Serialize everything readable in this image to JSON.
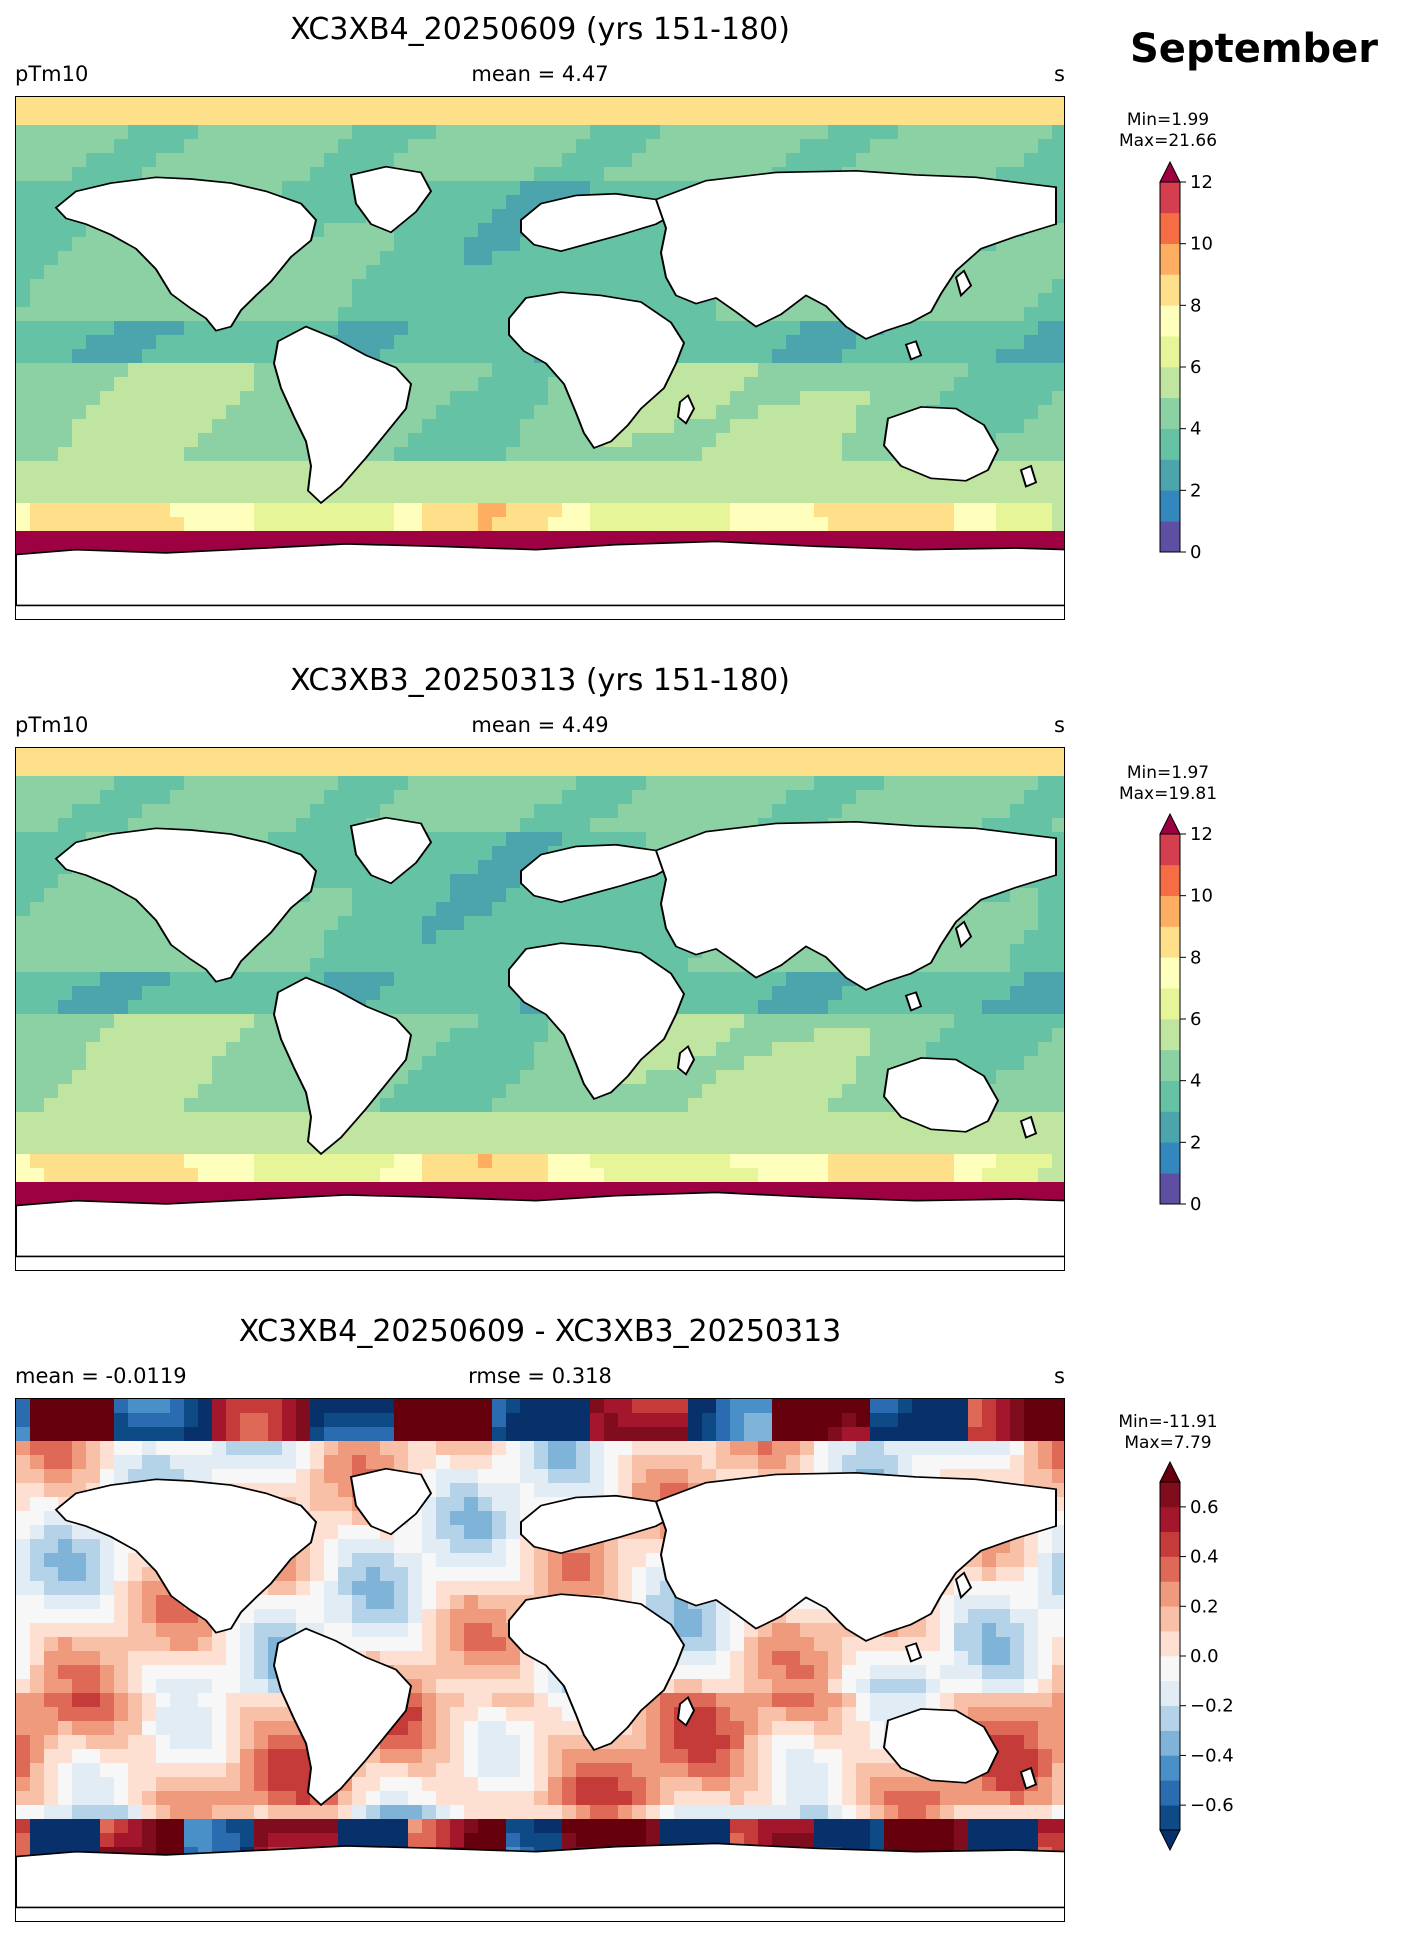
{
  "month_label": "September",
  "chart_data": [
    {
      "type": "heatmap",
      "title": "XC3XB4_20250609 (yrs 151-180)",
      "left_label": "pTm10",
      "center_label": "mean = 4.47",
      "units": "s",
      "min_label": "Min=1.99",
      "max_label": "Max=21.66",
      "colorbar": {
        "levels": [
          0,
          1,
          2,
          3,
          4,
          5,
          6,
          7,
          8,
          9,
          10,
          11,
          12
        ],
        "tick_labels": [
          "0",
          "2",
          "4",
          "6",
          "8",
          "10",
          "12"
        ],
        "colors": [
          "#5e4fa2",
          "#3288bd",
          "#4ca5ad",
          "#66c2a5",
          "#8cd1a4",
          "#bfe5a0",
          "#e6f598",
          "#fefebd",
          "#fee08b",
          "#fdae61",
          "#f46d43",
          "#d53e4f"
        ],
        "extend": "max",
        "over_color": "#9e0142"
      }
    },
    {
      "type": "heatmap",
      "title": "XC3XB3_20250313 (yrs 151-180)",
      "left_label": "pTm10",
      "center_label": "mean = 4.49",
      "units": "s",
      "min_label": "Min=1.97",
      "max_label": "Max=19.81",
      "colorbar": {
        "levels": [
          0,
          1,
          2,
          3,
          4,
          5,
          6,
          7,
          8,
          9,
          10,
          11,
          12
        ],
        "tick_labels": [
          "0",
          "2",
          "4",
          "6",
          "8",
          "10",
          "12"
        ],
        "colors": [
          "#5e4fa2",
          "#3288bd",
          "#4ca5ad",
          "#66c2a5",
          "#8cd1a4",
          "#bfe5a0",
          "#e6f598",
          "#fefebd",
          "#fee08b",
          "#fdae61",
          "#f46d43",
          "#d53e4f"
        ],
        "extend": "max",
        "over_color": "#9e0142"
      }
    },
    {
      "type": "heatmap",
      "title": "XC3XB4_20250609 - XC3XB3_20250313",
      "left_label": "mean = -0.0119",
      "center_label": "rmse = 0.318",
      "units": "s",
      "min_label": "Min=-11.91",
      "max_label": "Max=7.79",
      "colorbar": {
        "levels": [
          -0.7,
          -0.6,
          -0.5,
          -0.4,
          -0.3,
          -0.2,
          -0.1,
          0.0,
          0.1,
          0.2,
          0.3,
          0.4,
          0.5,
          0.6,
          0.7
        ],
        "tick_labels": [
          "−0.6",
          "−0.4",
          "−0.2",
          "0.0",
          "0.2",
          "0.4",
          "0.6"
        ],
        "colors": [
          "#0d4a86",
          "#2b6cb0",
          "#4a90c8",
          "#7fb3d8",
          "#b5d3e8",
          "#e1ecf4",
          "#f7f7f7",
          "#fde0d2",
          "#f8c0a6",
          "#ef9a7c",
          "#de6956",
          "#c53b3a",
          "#a3162b",
          "#7f0d1e"
        ],
        "extend": "both",
        "under_color": "#08306b",
        "over_color": "#67000d"
      }
    }
  ]
}
